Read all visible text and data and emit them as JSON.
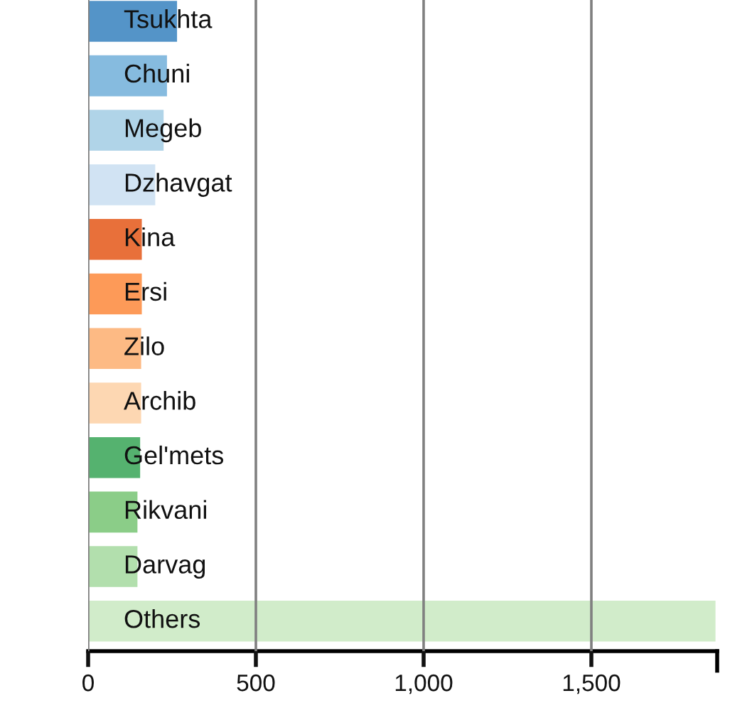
{
  "chart_data": {
    "type": "bar",
    "orientation": "horizontal",
    "categories": [
      "Tsukhta",
      "Chuni",
      "Megeb",
      "Dzhavgat",
      "Kina",
      "Ersi",
      "Zilo",
      "Archib",
      "Gel'mets",
      "Rikvani",
      "Darvag",
      "Others"
    ],
    "values": [
      265,
      235,
      225,
      200,
      160,
      160,
      158,
      158,
      155,
      147,
      147,
      1870
    ],
    "colors": [
      "#5494c8",
      "#86bbdf",
      "#b0d4e8",
      "#d1e3f3",
      "#e8703a",
      "#fd9a58",
      "#fdba84",
      "#fdd7b2",
      "#55b26f",
      "#8bcd88",
      "#b2dfad",
      "#d1ecca"
    ],
    "xlim": [
      0,
      1875
    ],
    "xticks": [
      0,
      500,
      {
        "value": 1000,
        "label": "1,000"
      },
      {
        "value": 1500,
        "label": "1,500"
      }
    ],
    "grid": "x"
  }
}
